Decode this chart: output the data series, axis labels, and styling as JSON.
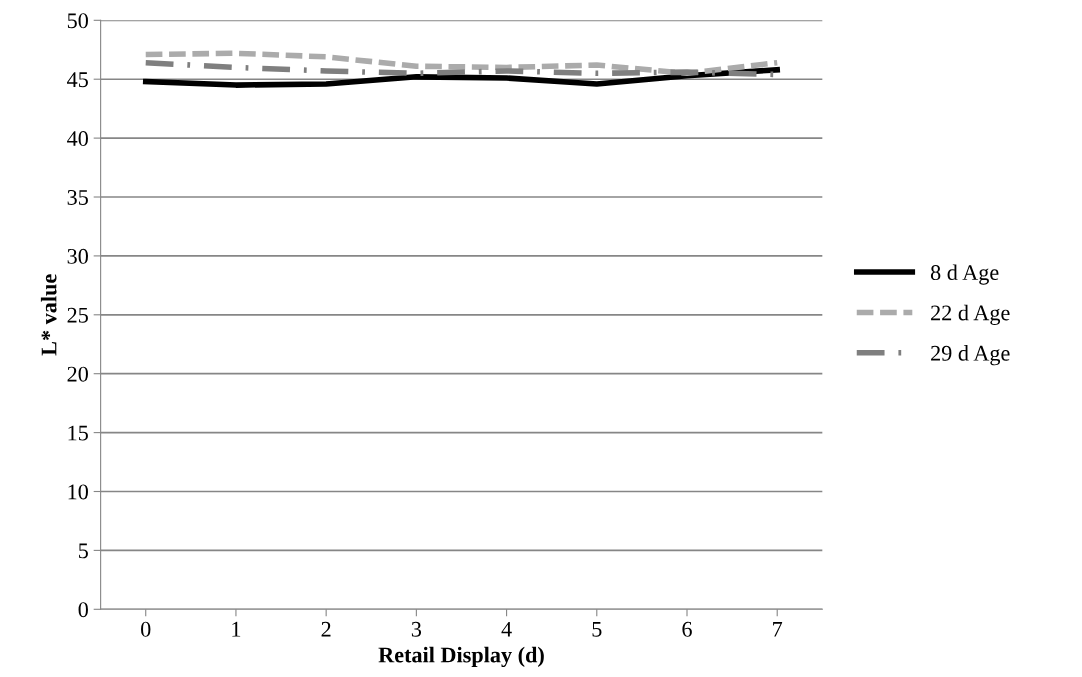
{
  "chart_data": {
    "type": "line",
    "xlabel": "Retail Display (d)",
    "ylabel": "L* value",
    "categories": [
      "0",
      "1",
      "2",
      "3",
      "4",
      "5",
      "6",
      "7"
    ],
    "series": [
      {
        "name": "8 d Age",
        "color": "#000000",
        "line_style": "solid",
        "values": [
          44.8,
          44.5,
          44.6,
          45.2,
          45.1,
          44.6,
          45.3,
          45.8
        ]
      },
      {
        "name": "22 d Age",
        "color": "#ababab",
        "line_style": "dashed",
        "values": [
          47.1,
          47.2,
          46.9,
          46.1,
          46.0,
          46.2,
          45.5,
          46.4
        ]
      },
      {
        "name": "29 d Age",
        "color": "#7f7f7f",
        "line_style": "dashdot",
        "values": [
          46.4,
          46.0,
          45.7,
          45.5,
          45.7,
          45.5,
          45.6,
          45.4
        ]
      }
    ],
    "ylim": [
      0,
      50
    ],
    "yticks": [
      0,
      5,
      10,
      15,
      20,
      25,
      30,
      35,
      40,
      45,
      50
    ],
    "grid": "y",
    "legend": "right",
    "marker": "none"
  }
}
